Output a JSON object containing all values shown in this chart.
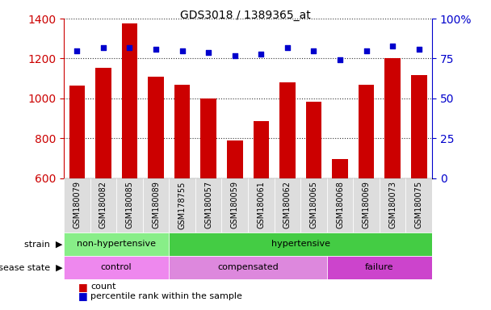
{
  "title": "GDS3018 / 1389365_at",
  "samples": [
    "GSM180079",
    "GSM180082",
    "GSM180085",
    "GSM180089",
    "GSM178755",
    "GSM180057",
    "GSM180059",
    "GSM180061",
    "GSM180062",
    "GSM180065",
    "GSM180068",
    "GSM180069",
    "GSM180073",
    "GSM180075"
  ],
  "counts": [
    1065,
    1155,
    1375,
    1110,
    1070,
    1000,
    790,
    885,
    1080,
    985,
    695,
    1070,
    1200,
    1115
  ],
  "percentile_ranks": [
    80,
    82,
    82,
    81,
    80,
    79,
    77,
    78,
    82,
    80,
    74,
    80,
    83,
    81
  ],
  "ylim_left": [
    600,
    1400
  ],
  "ylim_right": [
    0,
    100
  ],
  "yticks_left": [
    600,
    800,
    1000,
    1200,
    1400
  ],
  "yticks_right": [
    0,
    25,
    50,
    75,
    100
  ],
  "bar_color": "#cc0000",
  "dot_color": "#0000cc",
  "grid_color": "#000000",
  "strain_groups": [
    {
      "label": "non-hypertensive",
      "start": 0,
      "end": 4,
      "color": "#88ee88"
    },
    {
      "label": "hypertensive",
      "start": 4,
      "end": 14,
      "color": "#44cc44"
    }
  ],
  "disease_groups": [
    {
      "label": "control",
      "start": 0,
      "end": 4,
      "color": "#ee88ee"
    },
    {
      "label": "compensated",
      "start": 4,
      "end": 10,
      "color": "#dd88dd"
    },
    {
      "label": "failure",
      "start": 10,
      "end": 14,
      "color": "#cc44cc"
    }
  ],
  "legend_items": [
    {
      "color": "#cc0000",
      "label": "count"
    },
    {
      "color": "#0000cc",
      "label": "percentile rank within the sample"
    }
  ],
  "bg_color": "#ffffff",
  "tick_label_color_left": "#cc0000",
  "tick_label_color_right": "#0000cc",
  "xtick_bg_color": "#dddddd",
  "label_color_left": "strain",
  "label_color_disease": "disease state"
}
